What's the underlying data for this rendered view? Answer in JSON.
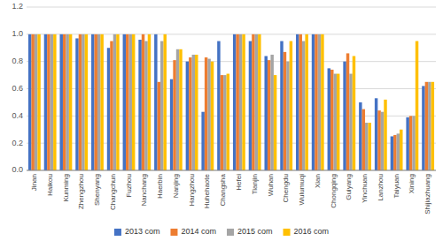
{
  "chart_data": {
    "type": "bar",
    "categories": [
      "Jinan",
      "Haikou",
      "Kunming",
      "Zhengzhou",
      "Shenyang",
      "Changchun",
      "Fuzhou",
      "Nanchang",
      "Haerbin",
      "Nanjing",
      "Hangzhou",
      "Huhehaote",
      "Changsha",
      "Hefei",
      "Tianjin",
      "Wuhan",
      "Chengdu",
      "Wulumuqi",
      "Xian",
      "Chongqing",
      "Guiyang",
      "Yinchuan",
      "Lanzhou",
      "Taiyuan",
      "Xining",
      "Shijiazhuang"
    ],
    "series": [
      {
        "name": "2013 com",
        "color": "#4472C4",
        "values": [
          1.0,
          1.0,
          1.0,
          0.97,
          1.0,
          0.9,
          1.0,
          0.96,
          1.0,
          0.67,
          0.8,
          0.43,
          0.95,
          1.0,
          0.95,
          0.84,
          0.95,
          1.0,
          1.0,
          0.75,
          0.8,
          0.5,
          0.53,
          0.25,
          0.39,
          0.62
        ]
      },
      {
        "name": "2014 com",
        "color": "#ED7D31",
        "values": [
          1.0,
          1.0,
          1.0,
          1.0,
          1.0,
          0.95,
          1.0,
          1.0,
          0.65,
          0.81,
          0.83,
          0.83,
          0.7,
          1.0,
          1.0,
          0.81,
          0.87,
          1.0,
          1.0,
          0.74,
          0.86,
          0.45,
          0.44,
          0.26,
          0.4,
          0.65
        ]
      },
      {
        "name": "2015 com",
        "color": "#A5A5A5",
        "values": [
          1.0,
          1.0,
          1.0,
          1.0,
          1.0,
          1.0,
          1.0,
          0.95,
          0.95,
          0.89,
          0.85,
          0.82,
          0.7,
          1.0,
          1.0,
          0.85,
          0.8,
          0.95,
          1.0,
          0.71,
          0.71,
          0.35,
          0.43,
          0.27,
          0.4,
          0.65
        ]
      },
      {
        "name": "2016 com",
        "color": "#FFC000",
        "values": [
          1.0,
          1.0,
          1.0,
          1.0,
          1.0,
          1.0,
          1.0,
          1.0,
          1.0,
          0.89,
          0.85,
          0.8,
          0.71,
          1.0,
          1.0,
          0.7,
          0.95,
          1.0,
          1.0,
          0.71,
          0.84,
          0.35,
          0.52,
          0.3,
          0.95,
          0.65
        ]
      }
    ],
    "ylim": [
      0,
      1.2
    ],
    "yticks": [
      {
        "value": 0,
        "label": "0.0"
      },
      0.2,
      0.4,
      0.6,
      0.8,
      {
        "value": 1,
        "label": "1.0"
      },
      1.2
    ],
    "grid": true,
    "legend": "bottom"
  }
}
